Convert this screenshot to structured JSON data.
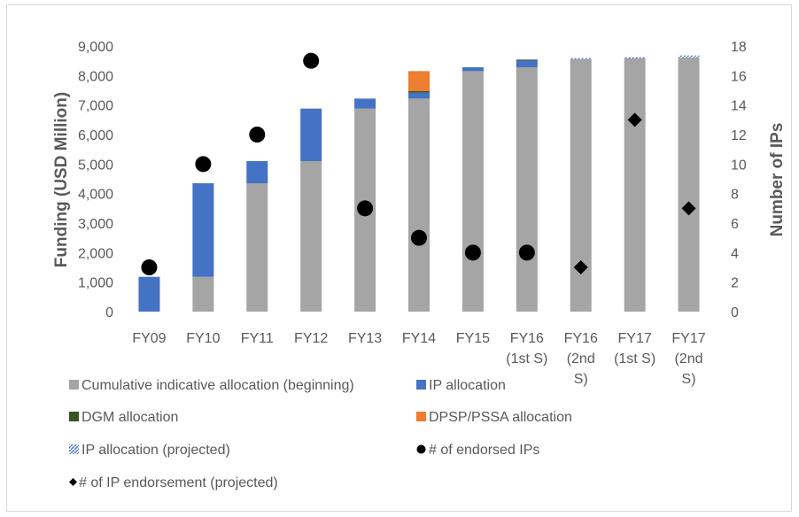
{
  "chart_data": {
    "type": "bar",
    "categories": [
      [
        "FY09"
      ],
      [
        "FY10"
      ],
      [
        "FY11"
      ],
      [
        "FY12"
      ],
      [
        "FY13"
      ],
      [
        "FY14"
      ],
      [
        "FY15"
      ],
      [
        "FY16",
        "(1st S)"
      ],
      [
        "FY16",
        "(2nd",
        "S)"
      ],
      [
        "FY17",
        "(1st S)"
      ],
      [
        "FY17",
        "(2nd",
        "S)"
      ]
    ],
    "ylabel": "Funding (USD Million)",
    "y2label": "Number of IPs",
    "ylim": [
      0,
      9000
    ],
    "y2lim": [
      0,
      18
    ],
    "yticks": [
      "0",
      "1,000",
      "2,000",
      "3,000",
      "4,000",
      "5,000",
      "6,000",
      "7,000",
      "8,000",
      "9,000"
    ],
    "y2ticks": [
      "0",
      "2",
      "4",
      "6",
      "8",
      "10",
      "12",
      "14",
      "16",
      "18"
    ],
    "grid": false,
    "legend_position": "bottom",
    "series": [
      {
        "name": "Cumulative indicative allocation (beginning)",
        "kind": "bar",
        "axis": "left",
        "color": "#a5a5a5",
        "values": [
          0,
          1180,
          4350,
          5100,
          6880,
          7220,
          8150,
          8280,
          8550,
          8580,
          8620
        ]
      },
      {
        "name": "IP allocation",
        "kind": "bar",
        "axis": "left",
        "color": "#4472c4",
        "values": [
          1180,
          3170,
          750,
          1780,
          340,
          200,
          130,
          240,
          0,
          0,
          0
        ]
      },
      {
        "name": "DGM allocation",
        "kind": "bar",
        "axis": "left",
        "color": "#375623",
        "values": [
          0,
          0,
          0,
          0,
          0,
          50,
          0,
          20,
          0,
          0,
          0
        ]
      },
      {
        "name": "DPSP/PSSA allocation",
        "kind": "bar",
        "axis": "left",
        "color": "#ed7d31",
        "values": [
          0,
          0,
          0,
          0,
          0,
          680,
          0,
          0,
          0,
          0,
          0
        ]
      },
      {
        "name": "IP allocation (projected)",
        "kind": "bar",
        "axis": "left",
        "color": "#4472c4",
        "pattern": "hatched",
        "values": [
          0,
          0,
          0,
          0,
          0,
          0,
          0,
          0,
          40,
          40,
          60
        ]
      },
      {
        "name": "# of endorsed IPs",
        "kind": "marker",
        "marker": "circle",
        "axis": "right",
        "color": "#000000",
        "values": [
          3,
          10,
          12,
          17,
          7,
          5,
          4,
          4,
          null,
          null,
          null
        ]
      },
      {
        "name": "# of IP endorsement (projected)",
        "kind": "marker",
        "marker": "diamond",
        "axis": "right",
        "color": "#000000",
        "values": [
          null,
          null,
          null,
          null,
          null,
          null,
          null,
          null,
          3,
          13,
          7
        ]
      }
    ]
  }
}
